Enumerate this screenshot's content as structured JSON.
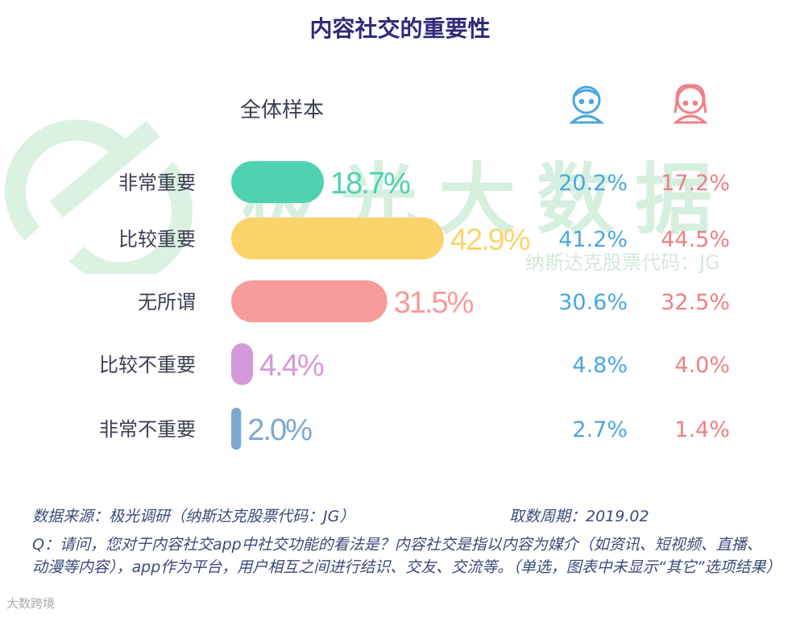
{
  "title": "内容社交的重要性",
  "watermark": {
    "brand": "极光大数据",
    "ticker": "纳斯达克股票代码：JG"
  },
  "chart_data": {
    "type": "bar",
    "orientation": "horizontal",
    "title": "内容社交的重要性",
    "column_header": "全体样本",
    "categories": [
      "非常重要",
      "比较重要",
      "无所谓",
      "比较不重要",
      "非常不重要"
    ],
    "values": [
      18.7,
      42.9,
      31.5,
      4.4,
      2.0
    ],
    "value_labels": [
      "18.7%",
      "42.9%",
      "31.5%",
      "4.4%",
      "2.0%"
    ],
    "bar_colors": [
      "#4fd2b0",
      "#fbd36b",
      "#f79b9b",
      "#d49ad8",
      "#7ca8cf"
    ],
    "group_icons": [
      "boy-icon",
      "girl-icon"
    ],
    "groups": [
      {
        "values": [
          20.2,
          41.2,
          30.6,
          4.8,
          2.7
        ],
        "labels": [
          "20.2%",
          "41.2%",
          "30.6%",
          "4.8%",
          "2.7%"
        ],
        "color": "#4aa7de"
      },
      {
        "values": [
          17.2,
          44.5,
          32.5,
          4.0,
          1.4
        ],
        "labels": [
          "17.2%",
          "44.5%",
          "32.5%",
          "4.0%",
          "1.4%"
        ],
        "color": "#ef7f86"
      }
    ],
    "grid": false,
    "legend": "none"
  },
  "footer": {
    "source": "数据来源：极光调研（纳斯达克股票代码：JG）",
    "period": "取数周期：2019.02",
    "question": "Q：请问，您对于内容社交app中社交功能的看法是？内容社交是指以内容为媒介（如资讯、短视频、直播、动漫等内容），app作为平台，用户相互之间进行结识、交友、交流等。（单选，图表中未显示“其它”选项结果）"
  },
  "corner_logo": "大数跨境"
}
